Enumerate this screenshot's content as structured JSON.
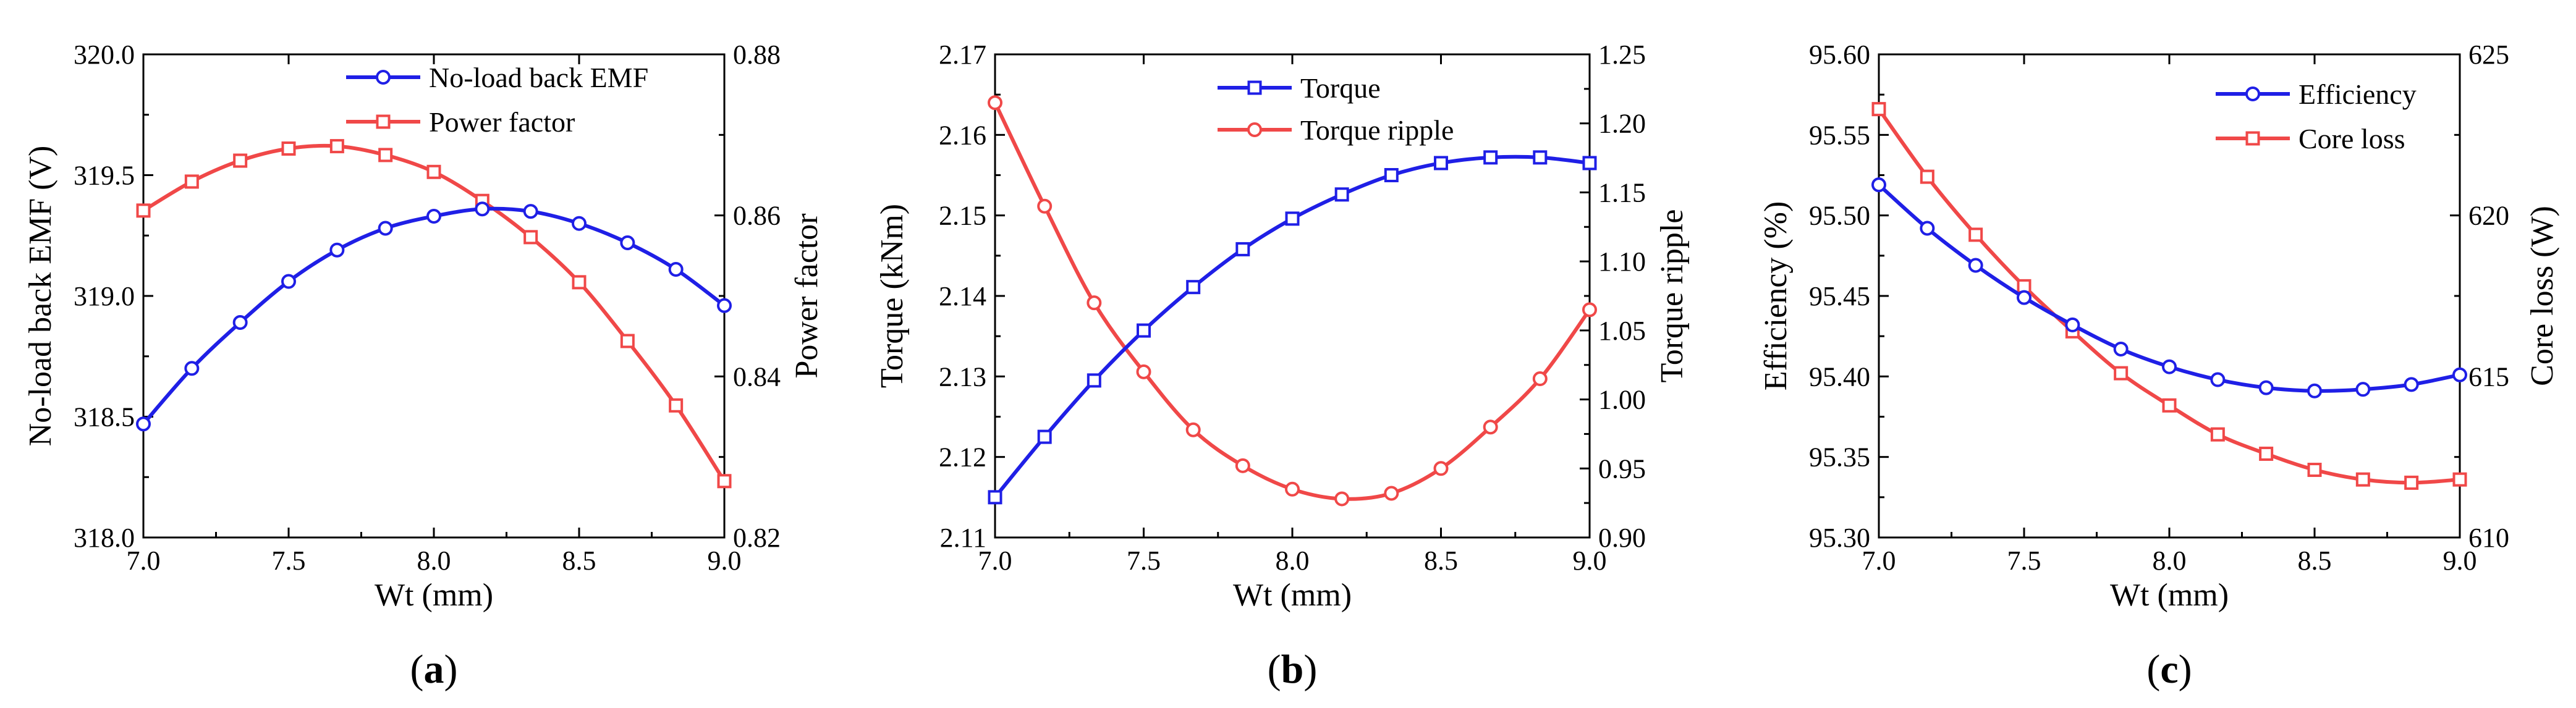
{
  "colors": {
    "blue": "#1f1fe6",
    "red": "#f04848",
    "axis": "#000000",
    "background": "#ffffff"
  },
  "chart_data": [
    {
      "id": "a",
      "type": "line",
      "caption": {
        "pre": "(",
        "letter": "a",
        "post": ")"
      },
      "xlabel": "Wt (mm)",
      "xlim": [
        7.0,
        9.0
      ],
      "xticks": [
        7.0,
        7.5,
        8.0,
        8.5,
        9.0
      ],
      "xtick_labels": [
        "7.0",
        "7.5",
        "8.0",
        "8.5",
        "9.0"
      ],
      "ylabel_left": "No-load back EMF (V)",
      "ylim_left": [
        318.0,
        320.0
      ],
      "yticks_left": [
        318.0,
        318.5,
        319.0,
        319.5,
        320.0
      ],
      "ytick_labels_left": [
        "318.0",
        "318.5",
        "319.0",
        "319.5",
        "320.0"
      ],
      "ylabel_right": "Power factor",
      "ylim_right": [
        0.82,
        0.88
      ],
      "yticks_right": [
        0.82,
        0.84,
        0.86,
        0.88
      ],
      "ytick_labels_right": [
        "0.82",
        "0.84",
        "0.86",
        "0.88"
      ],
      "legend_position": "top-right",
      "x": [
        7.0,
        7.1667,
        7.3333,
        7.5,
        7.6667,
        7.8333,
        8.0,
        8.1667,
        8.3333,
        8.5,
        8.6667,
        8.8333,
        9.0
      ],
      "series": [
        {
          "name": "No-load back EMF",
          "axis": "left",
          "color": "blue",
          "marker": "circle",
          "values": [
            318.47,
            318.7,
            318.89,
            319.06,
            319.19,
            319.28,
            319.33,
            319.36,
            319.35,
            319.3,
            319.22,
            319.11,
            318.96
          ]
        },
        {
          "name": "Power factor",
          "axis": "right",
          "color": "red",
          "marker": "square",
          "values": [
            0.8606,
            0.8642,
            0.8668,
            0.8683,
            0.8686,
            0.8675,
            0.8654,
            0.8618,
            0.8573,
            0.8517,
            0.8444,
            0.8364,
            0.827
          ]
        }
      ]
    },
    {
      "id": "b",
      "type": "line",
      "caption": {
        "pre": "(",
        "letter": "b",
        "post": ")"
      },
      "xlabel": "Wt (mm)",
      "xlim": [
        7.0,
        9.0
      ],
      "xticks": [
        7.0,
        7.5,
        8.0,
        8.5,
        9.0
      ],
      "xtick_labels": [
        "7.0",
        "7.5",
        "8.0",
        "8.5",
        "9.0"
      ],
      "ylabel_left": "Torque (kNm)",
      "ylim_left": [
        2.11,
        2.17
      ],
      "yticks_left": [
        2.11,
        2.12,
        2.13,
        2.14,
        2.15,
        2.16,
        2.17
      ],
      "ytick_labels_left": [
        "2.11",
        "2.12",
        "2.13",
        "2.14",
        "2.15",
        "2.16",
        "2.17"
      ],
      "ylabel_right": "Torque ripple",
      "ylim_right": [
        0.9,
        1.25
      ],
      "yticks_right": [
        0.9,
        0.95,
        1.0,
        1.05,
        1.1,
        1.15,
        1.2,
        1.25
      ],
      "ytick_labels_right": [
        "0.90",
        "0.95",
        "1.00",
        "1.05",
        "1.10",
        "1.15",
        "1.20",
        "1.25"
      ],
      "legend_position": "top-center",
      "x": [
        7.0,
        7.1667,
        7.3333,
        7.5,
        7.6667,
        7.8333,
        8.0,
        8.1667,
        8.3333,
        8.5,
        8.6667,
        8.8333,
        9.0
      ],
      "series": [
        {
          "name": "Torque",
          "axis": "left",
          "color": "blue",
          "marker": "square",
          "values": [
            2.115,
            2.1225,
            2.1295,
            2.1357,
            2.1411,
            2.1458,
            2.1496,
            2.1526,
            2.155,
            2.1565,
            2.1572,
            2.1572,
            2.1565
          ]
        },
        {
          "name": "Torque ripple",
          "axis": "right",
          "color": "red",
          "marker": "circle",
          "values": [
            1.215,
            1.14,
            1.07,
            1.02,
            0.978,
            0.952,
            0.935,
            0.928,
            0.932,
            0.95,
            0.98,
            1.015,
            1.065
          ]
        }
      ]
    },
    {
      "id": "c",
      "type": "line",
      "caption": {
        "pre": "(",
        "letter": "c",
        "post": ")"
      },
      "xlabel": "Wt (mm)",
      "xlim": [
        7.0,
        9.0
      ],
      "xticks": [
        7.0,
        7.5,
        8.0,
        8.5,
        9.0
      ],
      "xtick_labels": [
        "7.0",
        "7.5",
        "8.0",
        "8.5",
        "9.0"
      ],
      "ylabel_left": "Efficiency (%)",
      "ylim_left": [
        95.3,
        95.6
      ],
      "yticks_left": [
        95.3,
        95.35,
        95.4,
        95.45,
        95.5,
        95.55,
        95.6
      ],
      "ytick_labels_left": [
        "95.30",
        "95.35",
        "95.40",
        "95.45",
        "95.50",
        "95.55",
        "95.60"
      ],
      "ylabel_right": "Core loss (W)",
      "ylim_right": [
        610,
        625
      ],
      "yticks_right": [
        610,
        615,
        620,
        625
      ],
      "ytick_labels_right": [
        "610",
        "615",
        "620",
        "625"
      ],
      "legend_position": "top-right",
      "x": [
        7.0,
        7.1667,
        7.3333,
        7.5,
        7.6667,
        7.8333,
        8.0,
        8.1667,
        8.3333,
        8.5,
        8.6667,
        8.8333,
        9.0
      ],
      "series": [
        {
          "name": "Efficiency",
          "axis": "left",
          "color": "blue",
          "marker": "circle",
          "values": [
            95.519,
            95.492,
            95.469,
            95.449,
            95.432,
            95.417,
            95.406,
            95.398,
            95.393,
            95.391,
            95.392,
            95.395,
            95.401
          ]
        },
        {
          "name": "Core loss",
          "axis": "right",
          "color": "red",
          "marker": "square",
          "values": [
            623.3,
            621.2,
            619.4,
            617.8,
            616.4,
            615.1,
            614.1,
            613.2,
            612.6,
            612.1,
            611.8,
            611.7,
            611.8
          ]
        }
      ]
    }
  ]
}
